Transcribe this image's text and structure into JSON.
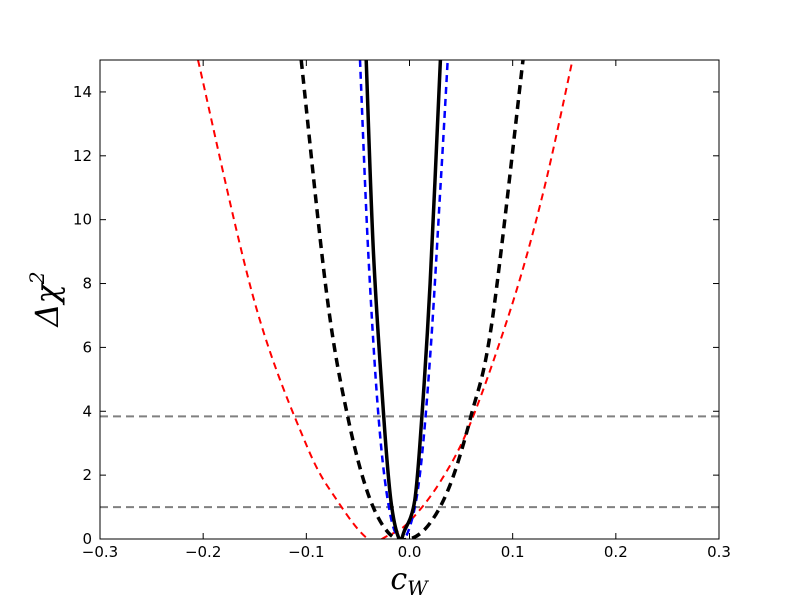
{
  "chart_data": {
    "type": "line",
    "xlabel": "c_W",
    "ylabel": "Δχ²",
    "xlim": [
      -0.3,
      0.3
    ],
    "ylim": [
      0,
      15
    ],
    "x_ticks": [
      -0.3,
      -0.2,
      -0.1,
      0.0,
      0.1,
      0.2,
      0.3
    ],
    "x_tick_labels": [
      "−0.3",
      "−0.2",
      "−0.1",
      "0.0",
      "0.1",
      "0.2",
      "0.3"
    ],
    "y_ticks": [
      0,
      2,
      4,
      6,
      8,
      10,
      12,
      14
    ],
    "y_tick_labels": [
      "0",
      "2",
      "4",
      "6",
      "8",
      "10",
      "12",
      "14"
    ],
    "grid": false,
    "reference_lines": [
      {
        "y": 1.0,
        "color": "#808080",
        "style": "dashed"
      },
      {
        "y": 3.84,
        "color": "#808080",
        "style": "dashed"
      }
    ],
    "series": [
      {
        "color": "#ff0000",
        "style": "dashed",
        "width": 2,
        "x": [
          -0.205,
          -0.15,
          -0.1,
          -0.07,
          -0.04,
          -0.02,
          0.0,
          0.03,
          0.06,
          0.1,
          0.13,
          0.158
        ],
        "y": [
          15.0,
          7.4,
          2.95,
          1.2,
          0.0,
          0.12,
          0.55,
          1.8,
          3.7,
          7.4,
          10.9,
          15.0
        ]
      },
      {
        "color": "#000000",
        "style": "dashed",
        "width": 3.5,
        "x": [
          -0.105,
          -0.08,
          -0.06,
          -0.04,
          -0.02,
          0.0,
          0.02,
          0.04,
          0.06,
          0.08,
          0.11
        ],
        "y": [
          15.0,
          7.6,
          3.85,
          1.4,
          0.18,
          0.0,
          0.5,
          1.75,
          3.9,
          6.8,
          15.0
        ]
      },
      {
        "color": "#0000ff",
        "style": "dashed",
        "width": 2.5,
        "x": [
          -0.048,
          -0.04,
          -0.03,
          -0.02,
          -0.01,
          0.0,
          0.01,
          0.02,
          0.03,
          0.037
        ],
        "y": [
          15.0,
          9.0,
          3.8,
          1.0,
          0.0,
          0.35,
          2.0,
          5.7,
          11.0,
          15.0
        ]
      },
      {
        "color": "#000000",
        "style": "solid",
        "width": 3.5,
        "x": [
          -0.042,
          -0.035,
          -0.025,
          -0.018,
          -0.01,
          -0.005,
          0.005,
          0.012,
          0.02,
          0.03
        ],
        "y": [
          15.0,
          9.0,
          3.85,
          1.2,
          0.0,
          0.25,
          1.2,
          3.85,
          8.0,
          15.0
        ]
      }
    ]
  }
}
